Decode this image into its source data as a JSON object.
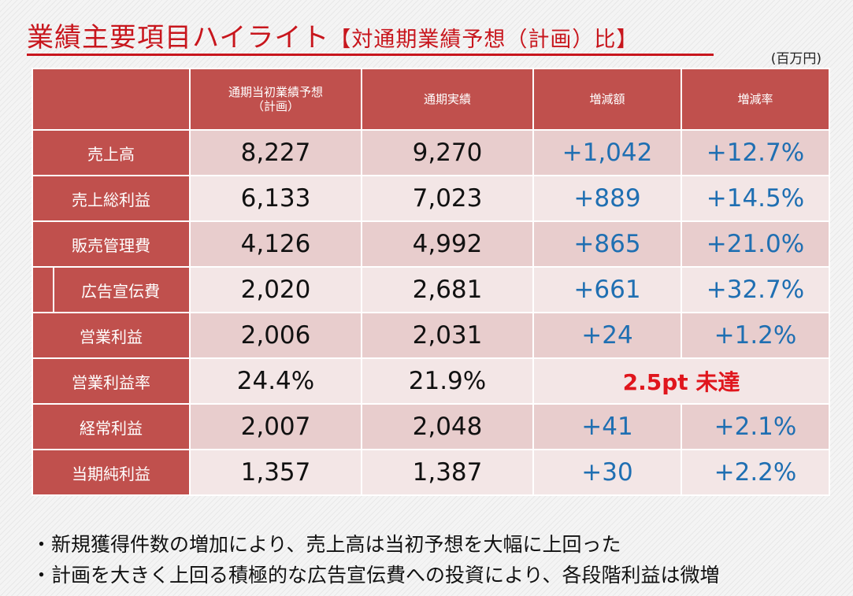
{
  "title": {
    "main": "業績主要項目ハイライト",
    "sub": "【対通期業績予想（計画）比】"
  },
  "unit": "(百万円)",
  "columns": [
    "",
    "通期当初業績予想\n（計画）",
    "通期実績",
    "増減額",
    "増減率"
  ],
  "rows": [
    {
      "label": "売上高",
      "plan": "8,227",
      "actual": "9,270",
      "diff": "+1,042",
      "rate": "+12.7%"
    },
    {
      "label": "売上総利益",
      "plan": "6,133",
      "actual": "7,023",
      "diff": "+889",
      "rate": "+14.5%"
    },
    {
      "label": "販売管理費",
      "plan": "4,126",
      "actual": "4,992",
      "diff": "+865",
      "rate": "+21.0%"
    },
    {
      "label": "広告宣伝費",
      "plan": "2,020",
      "actual": "2,681",
      "diff": "+661",
      "rate": "+32.7%"
    },
    {
      "label": "営業利益",
      "plan": "2,006",
      "actual": "2,031",
      "diff": "+24",
      "rate": "+1.2%"
    },
    {
      "label": "営業利益率",
      "plan": "24.4%",
      "actual": "21.9%",
      "note": "2.5pt 未達"
    },
    {
      "label": "経常利益",
      "plan": "2,007",
      "actual": "2,048",
      "diff": "+41",
      "rate": "+2.1%"
    },
    {
      "label": "当期純利益",
      "plan": "1,357",
      "actual": "1,387",
      "diff": "+30",
      "rate": "+2.2%"
    }
  ],
  "bullets": [
    "・新規獲得件数の増加により、売上高は当初予想を大幅に上回った",
    "・計画を大きく上回る積極的な広告宣伝費への投資により、各段階利益は微増"
  ]
}
